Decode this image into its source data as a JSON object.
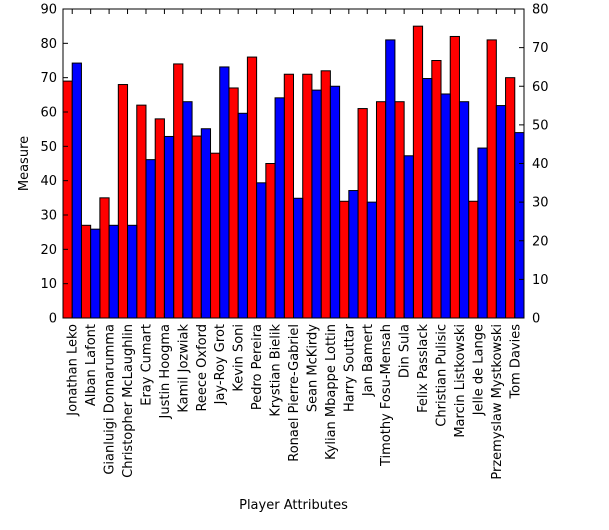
{
  "chart_data": {
    "type": "bar",
    "title": "",
    "xlabel": "Player Attributes",
    "ylabel": "Measure",
    "ylim": [
      0,
      90
    ],
    "y2lim": [
      0,
      80
    ],
    "yticks": [
      "0",
      "10",
      "20",
      "30",
      "40",
      "50",
      "60",
      "70",
      "80",
      "90"
    ],
    "y2ticks": [
      "0",
      "10",
      "20",
      "30",
      "40",
      "50",
      "60",
      "70",
      "80"
    ],
    "grid": false,
    "legend": "none",
    "categories": [
      "Jonathan Leko",
      "Alban Lafont",
      "Gianluigi Donnarumma",
      "Christopher McLaughlin",
      "Eray Cumart",
      "Justin Hoogma",
      "Kamil Jozwiak",
      "Reece Oxford",
      "Jay-Roy Grot",
      "Kevin Soni",
      "Pedro Pereira",
      "Krystian Bielik",
      "Ronael Pierre-Gabriel",
      "Sean McKirdy",
      "Kylian Mbappe Lottin",
      "Harry Souttar",
      "Jan Bamert",
      "Timothy Fosu-Mensah",
      "Din Sula",
      "Felix Passlack",
      "Christian Pulisic",
      "Marcin Listkowski",
      "Jelle de Lange",
      "Przemyslaw Mystkowski",
      "Tom Davies"
    ],
    "series": [
      {
        "color": "#ff0000",
        "axis": "left",
        "values": [
          69,
          27,
          35,
          68,
          62,
          58,
          74,
          53,
          48,
          67,
          76,
          45,
          71,
          71,
          72,
          34,
          61,
          63,
          63,
          85,
          75,
          82,
          34,
          81,
          70
        ]
      },
      {
        "color": "#0000ff",
        "axis": "right",
        "values": [
          66,
          23,
          24,
          24,
          41,
          47,
          56,
          49,
          65,
          53,
          35,
          57,
          31,
          59,
          60,
          33,
          30,
          72,
          42,
          62,
          58,
          56,
          44,
          55,
          48
        ]
      }
    ]
  }
}
